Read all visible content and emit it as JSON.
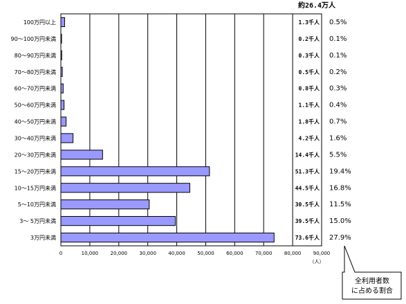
{
  "chart_data": {
    "type": "bar",
    "orientation": "horizontal",
    "categories": [
      "100万円以上",
      "90〜100万円未満",
      "80〜90万円未満",
      "70〜80万円未満",
      "60〜70万円未満",
      "50〜60万円未満",
      "40〜50万円未満",
      "30〜40万円未満",
      "20〜30万円未満",
      "15〜20万円未満",
      "10〜15万円未満",
      "5〜10万円未満",
      "3〜 5万円未満",
      "3万円未満"
    ],
    "values": [
      1300,
      200,
      300,
      500,
      800,
      1100,
      1800,
      4200,
      14400,
      51300,
      44500,
      30500,
      39500,
      73600
    ],
    "count_labels": [
      "1.3千人",
      "0.2千人",
      "0.3千人",
      "0.5千人",
      "0.8千人",
      "1.1千人",
      "1.8千人",
      "4.2千人",
      "14.4千人",
      "51.3千人",
      "44.5千人",
      "30.5千人",
      "39.5千人",
      "73.6千人"
    ],
    "share_labels": [
      "0.5%",
      "0.1%",
      "0.1%",
      "0.2%",
      "0.3%",
      "0.4%",
      "0.7%",
      "1.6%",
      "5.5%",
      "19.4%",
      "16.8%",
      "11.5%",
      "15.0%",
      "27.9%"
    ],
    "xlim": [
      0,
      90000
    ],
    "xticks": [
      "0",
      "10,000",
      "20,000",
      "30,000",
      "40,000",
      "50,000",
      "60,000",
      "70,000",
      "80,000",
      "90,000"
    ],
    "xlabel": "（人）",
    "total_label": "約26.4万人",
    "callout": [
      "全利用者数",
      "に占める割合"
    ],
    "grid": true,
    "bar_color": "#9999ff",
    "bar_edge_color": "#000000"
  }
}
